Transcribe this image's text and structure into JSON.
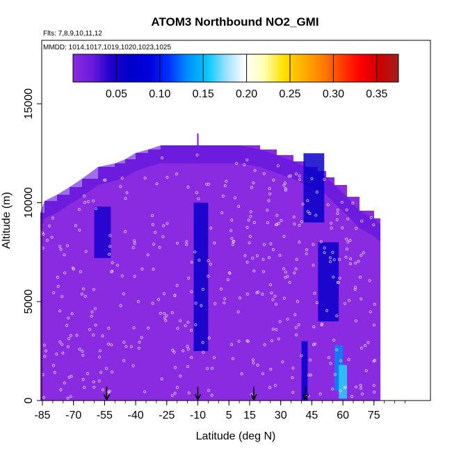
{
  "chart_data": {
    "type": "heatmap",
    "title": "ATOM3 Northbound NO2_GMI",
    "subtitle_flights": "Flts: 7,8,9,10,11,12",
    "subtitle_dates": "MMDD: 1014,1017,1019,1020,1023,1025",
    "xlabel": "Latitude (deg N)",
    "ylabel": "Altitude (m)",
    "xlim": [
      -90,
      90
    ],
    "ylim": [
      0,
      17500
    ],
    "x_ticks": [
      -85,
      -70,
      -55,
      -40,
      -25,
      -10,
      5,
      15,
      30,
      45,
      60,
      75
    ],
    "x_tick_labels": [
      "-85",
      "-70",
      "-55",
      "-40",
      "-25",
      "-10",
      "5",
      "15",
      "30",
      "45",
      "60",
      "75"
    ],
    "y_ticks": [
      0,
      5000,
      10000,
      15000
    ],
    "y_tick_labels": [
      "0",
      "5000",
      "10000",
      "15000"
    ],
    "colorbar": {
      "range": [
        0,
        0.375
      ],
      "ticks": [
        0.05,
        0.1,
        0.15,
        0.2,
        0.25,
        0.3,
        0.35
      ],
      "tick_labels": [
        "0.05",
        "0.10",
        "0.15",
        "0.20",
        "0.25",
        "0.30",
        "0.35"
      ],
      "colors": [
        "#8a2be2",
        "#6a1bdc",
        "#1e00cc",
        "#0000c8",
        "#0000e0",
        "#0030ff",
        "#0090ff",
        "#00c8ff",
        "#a0e0ff",
        "#ffffff",
        "#ffffb0",
        "#ffe000",
        "#ffb000",
        "#ff8000",
        "#ff4000",
        "#ff0000",
        "#d00000",
        "#a02020"
      ]
    },
    "ceiling_profile": {
      "lat": [
        -86,
        -84,
        -78,
        -72,
        -66,
        -58,
        -50,
        -45,
        -40,
        -34,
        -28,
        -20,
        -10,
        0,
        10,
        20,
        28,
        36,
        42,
        48,
        52,
        56,
        62,
        68,
        75,
        78
      ],
      "alt": [
        9500,
        10100,
        10400,
        10800,
        11200,
        11800,
        12000,
        12200,
        12500,
        12700,
        12900,
        12900,
        12900,
        12900,
        12900,
        12700,
        12400,
        12100,
        11800,
        11600,
        11300,
        10900,
        10300,
        9600,
        9200,
        8900
      ]
    },
    "high_no2_features": [
      {
        "lat_min": -60,
        "lat_max": -52,
        "alt_min": 7200,
        "alt_max": 9800,
        "value": 0.05
      },
      {
        "lat_min": -12,
        "lat_max": -5,
        "alt_min": 2500,
        "alt_max": 10000,
        "value": 0.06
      },
      {
        "lat_min": 41,
        "lat_max": 51,
        "alt_min": 9000,
        "alt_max": 12500,
        "value": 0.06
      },
      {
        "lat_min": 48,
        "lat_max": 58,
        "alt_min": 4000,
        "alt_max": 8000,
        "value": 0.06
      },
      {
        "lat_min": 40,
        "lat_max": 43,
        "alt_min": 0,
        "alt_max": 3000,
        "value": 0.07
      },
      {
        "lat_min": 56,
        "lat_max": 60,
        "alt_min": 500,
        "alt_max": 2800,
        "value": 0.13
      },
      {
        "lat_min": 58,
        "lat_max": 62,
        "alt_min": 100,
        "alt_max": 1800,
        "value": 0.16
      }
    ],
    "sounding_arrows_lat": [
      -54,
      -10,
      17,
      42
    ]
  }
}
